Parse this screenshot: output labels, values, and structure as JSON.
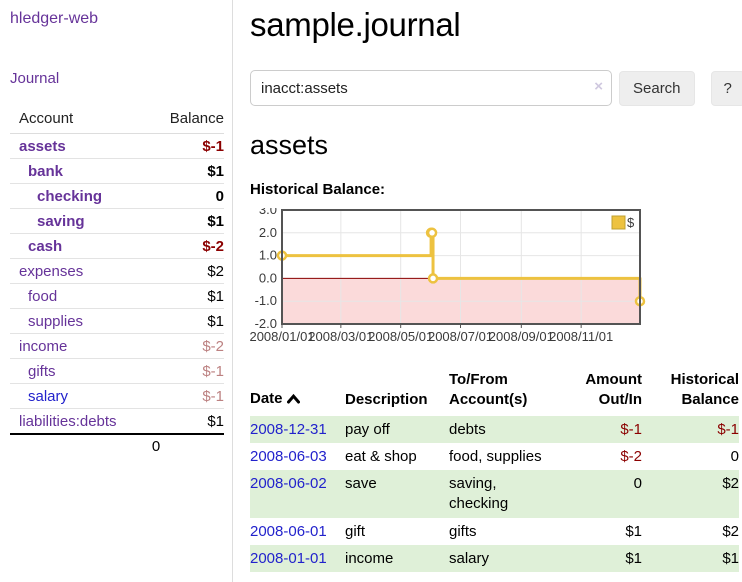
{
  "colors": {
    "accent_purple": "#663399",
    "link_blue": "#2222cc",
    "negative_red": "#8b0000",
    "muted_rose": "#bc8181",
    "row_green": "#dff0d8",
    "chart_gold": "#edc240",
    "chart_border": "#545454",
    "negative_area_pink": "#fbdada",
    "zero_line_red": "#8b0000"
  },
  "sidebar": {
    "brand": "hledger-web",
    "journal_label": "Journal",
    "table": {
      "account_header": "Account",
      "balance_header": "Balance",
      "accounts": [
        {
          "name": "assets",
          "balance": "$-1",
          "level": 1,
          "bold": true,
          "balance_class": "neg"
        },
        {
          "name": "bank",
          "balance": "$1",
          "level": 2,
          "bold": true,
          "balance_class": "pos"
        },
        {
          "name": "checking",
          "balance": "0",
          "level": 3,
          "bold": true,
          "balance_class": "pos"
        },
        {
          "name": "saving",
          "balance": "$1",
          "level": 3,
          "bold": true,
          "balance_class": "pos"
        },
        {
          "name": "cash",
          "balance": "$-2",
          "level": 2,
          "bold": true,
          "balance_class": "neg"
        },
        {
          "name": "expenses",
          "balance": "$2",
          "level": 1,
          "bold": false,
          "balance_class": "pos"
        },
        {
          "name": "food",
          "balance": "$1",
          "level": 2,
          "bold": false,
          "balance_class": "pos"
        },
        {
          "name": "supplies",
          "balance": "$1",
          "level": 2,
          "bold": false,
          "balance_class": "pos"
        },
        {
          "name": "income",
          "balance": "$-2",
          "level": 1,
          "bold": false,
          "balance_class": "muted"
        },
        {
          "name": "gifts",
          "balance": "$-1",
          "level": 2,
          "bold": false,
          "balance_class": "muted"
        },
        {
          "name": "salary",
          "balance": "$-1",
          "level": 2,
          "bold": false,
          "balance_class": "muted",
          "blue_link": true
        },
        {
          "name": "liabilities:debts",
          "balance": "$1",
          "level": 1,
          "bold": false,
          "balance_class": "pos"
        }
      ],
      "total": "0"
    }
  },
  "main": {
    "title": "sample.journal",
    "account_heading": "assets",
    "chart_label": "Historical Balance:"
  },
  "search": {
    "value": "inacct:assets",
    "clear_glyph": "×",
    "button_label": "Search",
    "help_label": "?"
  },
  "chart_data": {
    "type": "line",
    "step": true,
    "title": "Historical Balance:",
    "legend": {
      "label": "$",
      "position": "top-right"
    },
    "ylim": [
      -2.0,
      3.0
    ],
    "yticks": [
      "3.0",
      "2.0",
      "1.0",
      "0.0",
      "-1.0",
      "-2.0"
    ],
    "ytick_values": [
      3,
      2,
      1,
      0,
      -1,
      -2
    ],
    "x_range_days": 365,
    "xticks": [
      {
        "label": "2008/01/01",
        "day": 0
      },
      {
        "label": "2008/03/01",
        "day": 60
      },
      {
        "label": "2008/05/01",
        "day": 121
      },
      {
        "label": "2008/07/01",
        "day": 182
      },
      {
        "label": "2008/09/01",
        "day": 244
      },
      {
        "label": "2008/11/01",
        "day": 305
      }
    ],
    "series": [
      {
        "name": "$",
        "dates": [
          "2008-01-01",
          "2008-06-01",
          "2008-06-02",
          "2008-06-03",
          "2008-12-31"
        ],
        "x_days": [
          0,
          152,
          153,
          154,
          365
        ],
        "values": [
          1,
          2,
          2,
          0,
          -1
        ]
      }
    ],
    "negative_region_shaded": true
  },
  "transactions": {
    "columns": [
      {
        "label": "Date",
        "sortable": true
      },
      {
        "label": "Description"
      },
      {
        "label": "To/From Account(s)"
      },
      {
        "label": "Amount Out/In"
      },
      {
        "label": "Historical Balance"
      }
    ],
    "rows": [
      {
        "date": "2008-12-31",
        "description": "pay off",
        "accounts": "debts",
        "amount": "$-1",
        "amount_neg": true,
        "balance": "$-1",
        "balance_neg": true
      },
      {
        "date": "2008-06-03",
        "description": "eat & shop",
        "accounts": "food, supplies",
        "amount": "$-2",
        "amount_neg": true,
        "balance": "0",
        "balance_neg": false
      },
      {
        "date": "2008-06-02",
        "description": "save",
        "accounts": "saving, checking",
        "amount": "0",
        "amount_neg": false,
        "balance": "$2",
        "balance_neg": false
      },
      {
        "date": "2008-06-01",
        "description": "gift",
        "accounts": "gifts",
        "amount": "$1",
        "amount_neg": false,
        "balance": "$2",
        "balance_neg": false
      },
      {
        "date": "2008-01-01",
        "description": "income",
        "accounts": "salary",
        "amount": "$1",
        "amount_neg": false,
        "balance": "$1",
        "balance_neg": false
      }
    ]
  }
}
